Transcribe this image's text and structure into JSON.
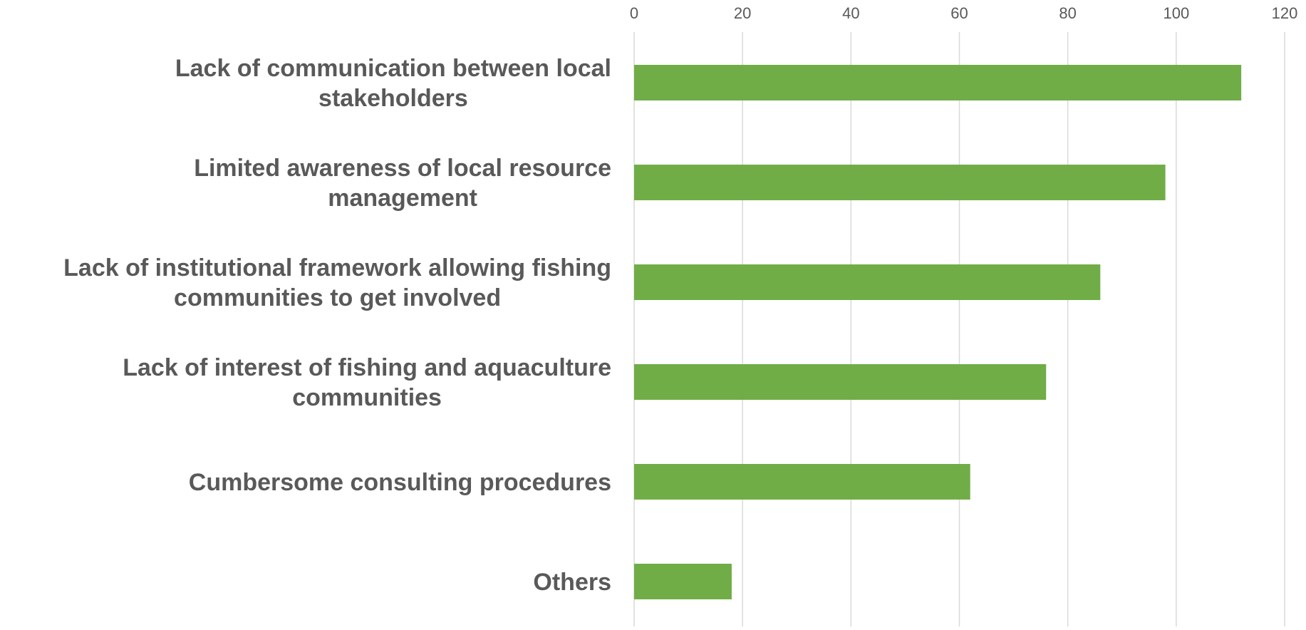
{
  "chart_data": {
    "type": "bar",
    "orientation": "horizontal",
    "categories": [
      "Lack of communication between local stakeholders",
      "Limited awareness of local resource management",
      "Lack of institutional framework allowing fishing communities to get involved",
      "Lack of interest of fishing and aquaculture communities",
      "Cumbersome consulting procedures",
      "Others"
    ],
    "category_label_lines": [
      [
        "Lack of communication between local",
        "stakeholders"
      ],
      [
        "Limited awareness of local resource",
        "management"
      ],
      [
        "Lack of institutional framework allowing fishing",
        "communities to get involved"
      ],
      [
        "Lack of interest of fishing and aquaculture",
        "communities"
      ],
      [
        "Cumbersome consulting procedures"
      ],
      [
        "Others"
      ]
    ],
    "values": [
      112,
      98,
      86,
      76,
      62,
      18
    ],
    "x_ticks": [
      "0",
      "20",
      "40",
      "60",
      "80",
      "100",
      "120"
    ],
    "xlim": [
      0,
      120
    ],
    "x_axis_position": "top",
    "grid": "vertical",
    "legend": "none",
    "title": "",
    "xlabel": "",
    "ylabel": "",
    "colors": {
      "bar": "#70AD47",
      "grid": "#D9D9D9",
      "text": "#595959"
    }
  }
}
